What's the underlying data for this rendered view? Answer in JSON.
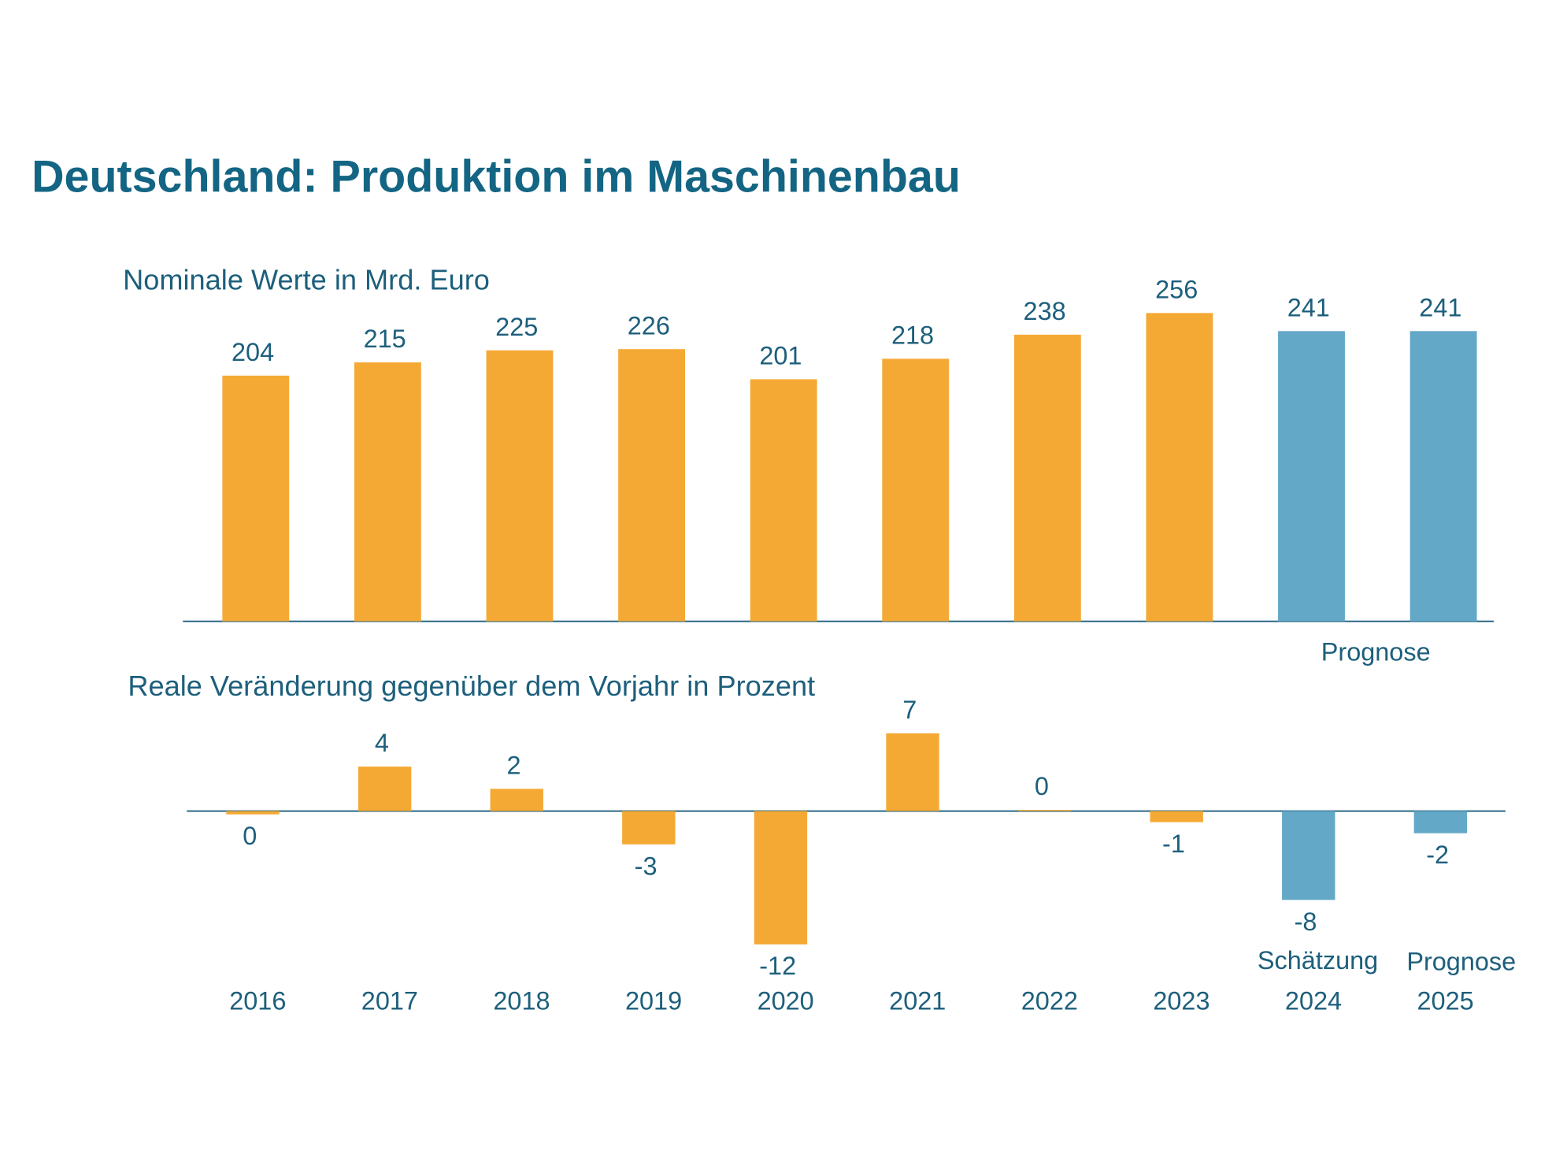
{
  "chart_data": [
    {
      "type": "bar",
      "title": "Deutschland: Produktion im Maschinenbau",
      "subtitle": "Nominale Werte in Mrd. Euro",
      "values": [
        204,
        215,
        225,
        226,
        201,
        218,
        238,
        256,
        241,
        241
      ],
      "colors": [
        "#f5a935",
        "#f5a935",
        "#f5a935",
        "#f5a935",
        "#f5a935",
        "#f5a935",
        "#f5a935",
        "#f5a935",
        "#64a8c8",
        "#64a8c8"
      ],
      "ylim": [
        0,
        300
      ],
      "annotations": [
        "Prognose"
      ]
    },
    {
      "type": "bar",
      "subtitle": "Reale Veränderung gegenüber dem Vorjahr in Prozent",
      "categories": [
        "2016",
        "2017",
        "2018",
        "2019",
        "2020",
        "2021",
        "2022",
        "2023",
        "2024",
        "2025"
      ],
      "values": [
        -0.3,
        4,
        2,
        -3,
        -12,
        7,
        0.1,
        -1,
        -8,
        -2
      ],
      "value_labels": [
        "0",
        "4",
        "2",
        "-3",
        "-12",
        "7",
        "0",
        "-1",
        "-8",
        "-2"
      ],
      "colors": [
        "#f5a935",
        "#f5a935",
        "#f5a935",
        "#f5a935",
        "#f5a935",
        "#f5a935",
        "#f5a935",
        "#f5a935",
        "#64a8c8",
        "#64a8c8"
      ],
      "ylim": [
        -14,
        8
      ],
      "annotations": [
        "Schätzung",
        "Prognose"
      ]
    }
  ]
}
